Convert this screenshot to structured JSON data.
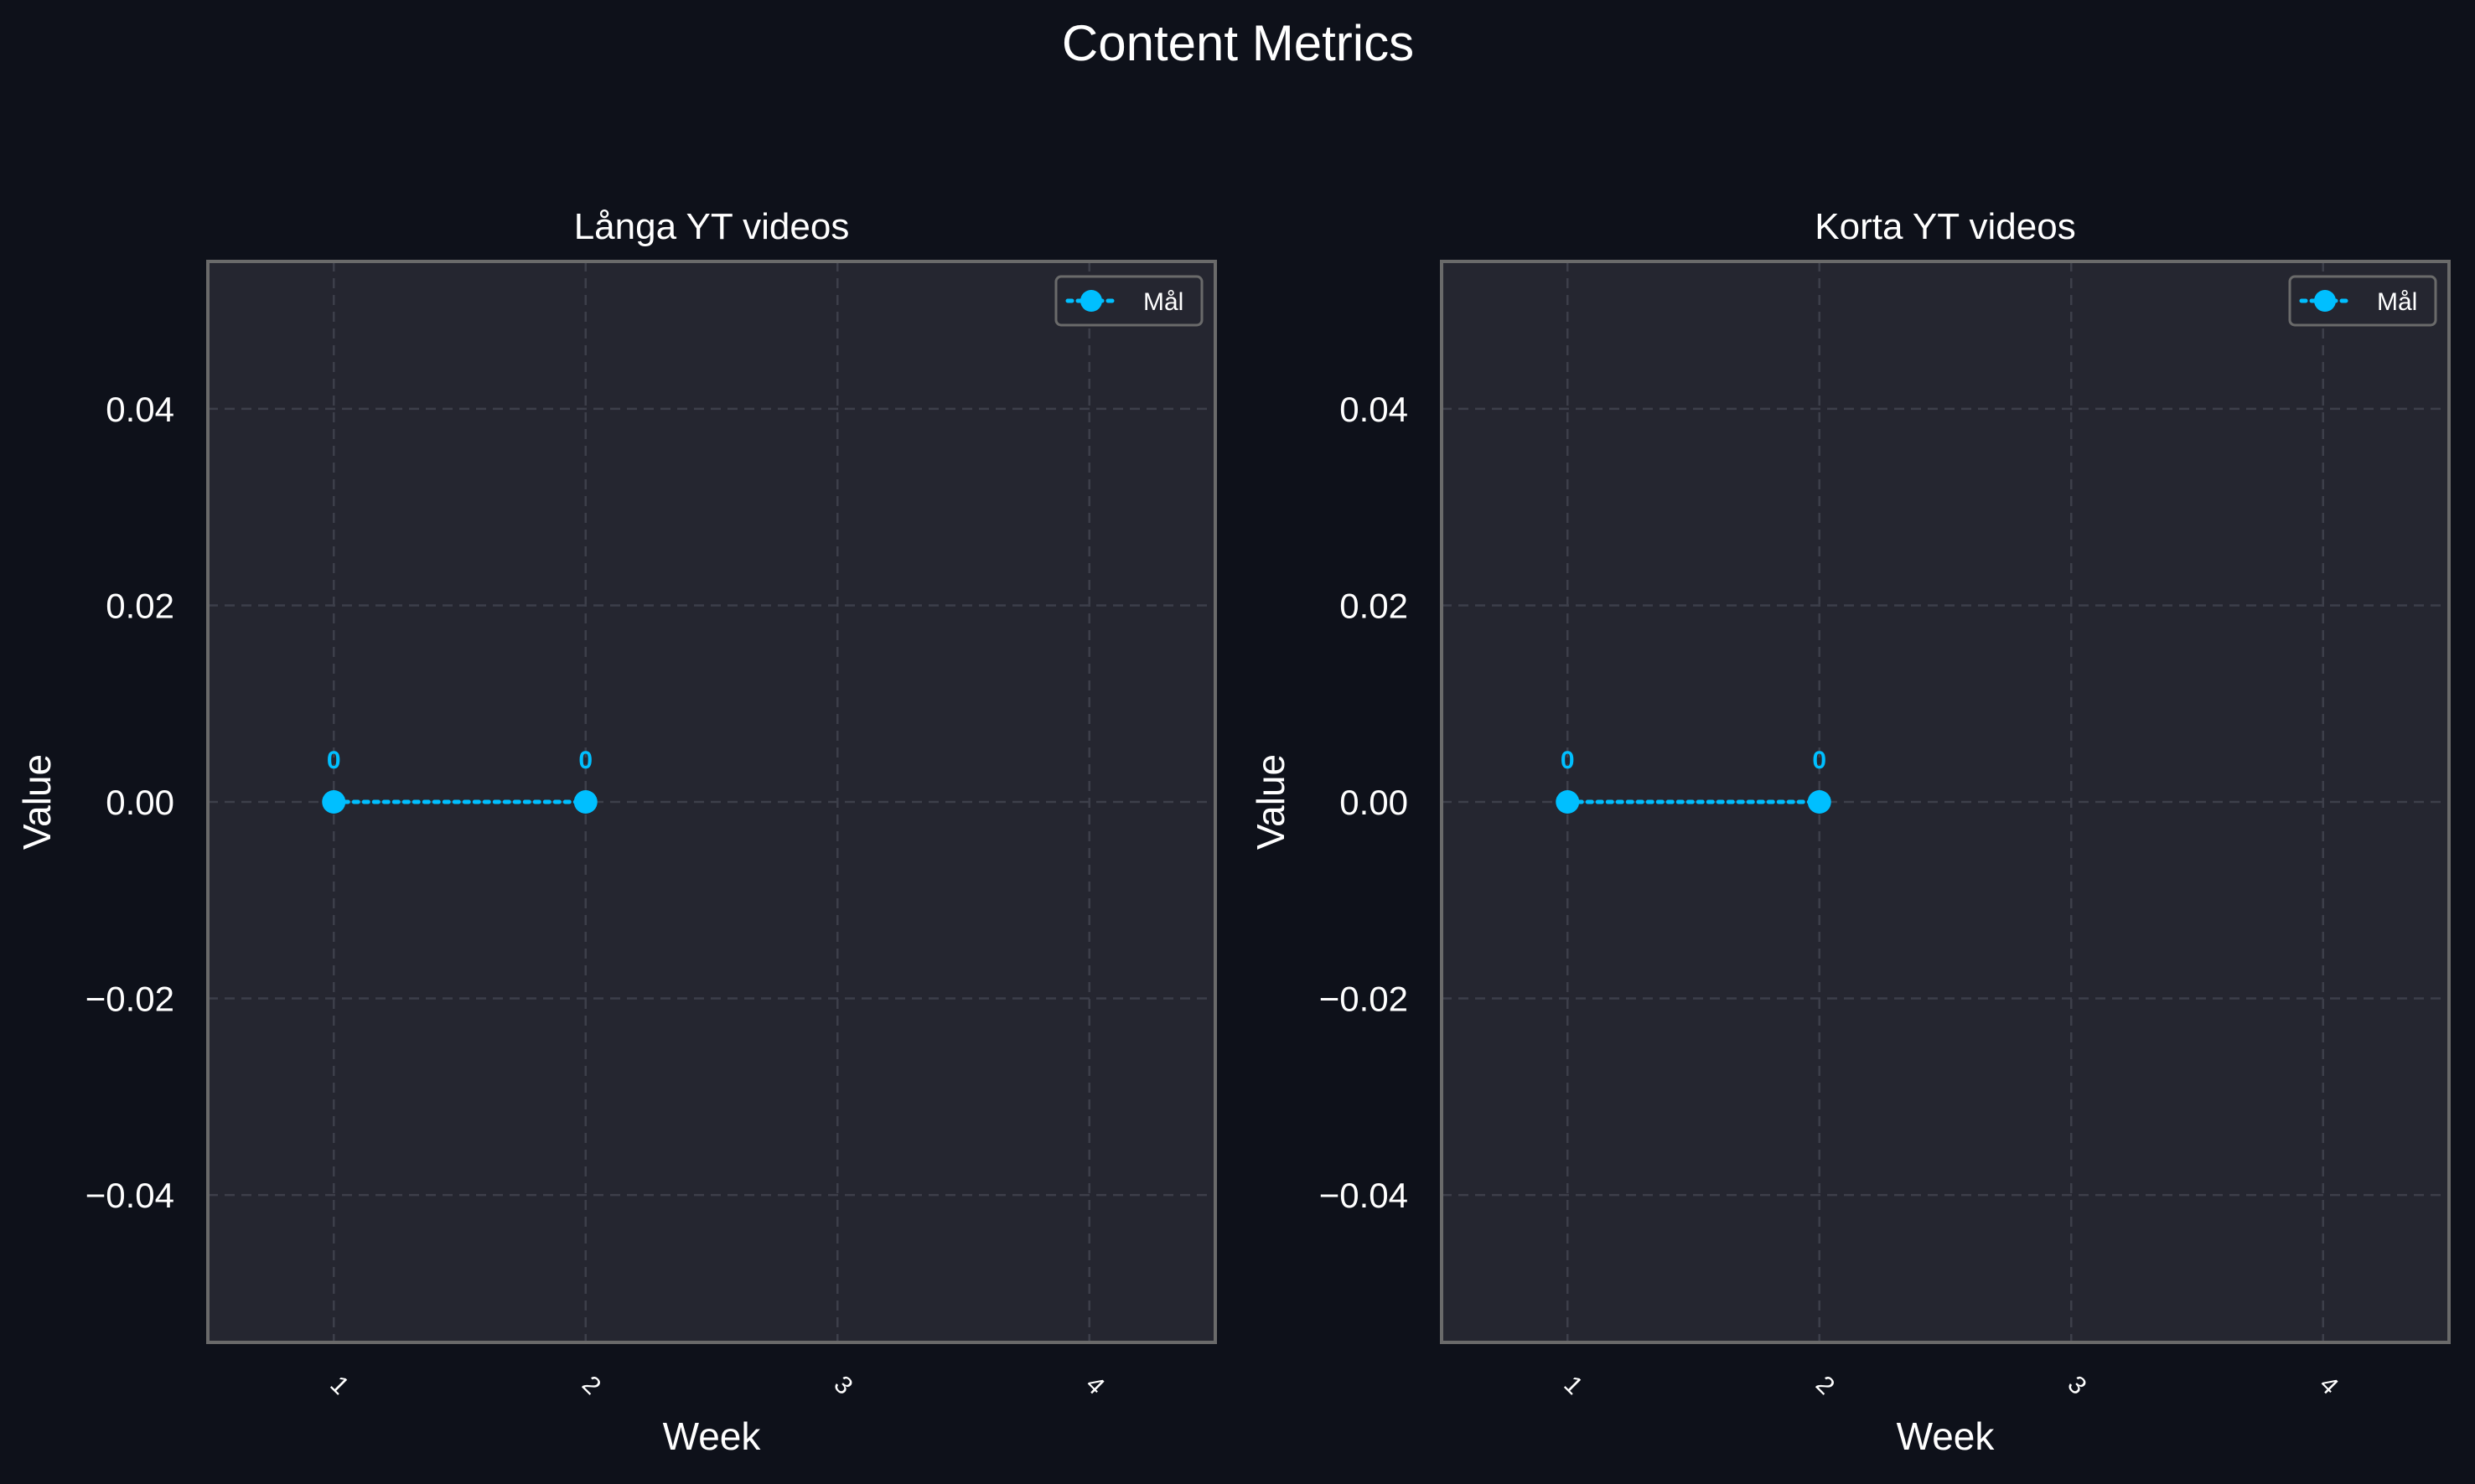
{
  "figure": {
    "title": "Content Metrics"
  },
  "colors": {
    "background": "#0e111a",
    "axes_face": "#252630",
    "axes_edge": "#6a6a6a",
    "grid": "#3d3f4a",
    "text": "#ffffff",
    "series": "#00bfff",
    "legend_face": "#252630",
    "legend_edge": "#6a6a6a"
  },
  "chart_data": [
    {
      "type": "line",
      "title": "Långa YT videos",
      "xlabel": "Week",
      "ylabel": "Value",
      "x_ticks": [
        "1",
        "2",
        "3",
        "4"
      ],
      "xlim": [
        0.5,
        4.5
      ],
      "ylim": [
        -0.055,
        0.055
      ],
      "y_ticks": [
        0.04,
        0.02,
        0.0,
        -0.02,
        -0.04
      ],
      "y_tick_labels": [
        "0.04",
        "0.02",
        "0.00",
        "−0.02",
        "−0.04"
      ],
      "grid": true,
      "legend_position": "top-right",
      "series": [
        {
          "name": "Mål",
          "line_style": "dotted",
          "marker": "circle",
          "x": [
            1,
            2
          ],
          "values": [
            0,
            0
          ],
          "data_labels": [
            "0",
            "0"
          ]
        }
      ]
    },
    {
      "type": "line",
      "title": "Korta YT videos",
      "xlabel": "Week",
      "ylabel": "Value",
      "x_ticks": [
        "1",
        "2",
        "3",
        "4"
      ],
      "xlim": [
        0.5,
        4.5
      ],
      "ylim": [
        -0.055,
        0.055
      ],
      "y_ticks": [
        0.04,
        0.02,
        0.0,
        -0.02,
        -0.04
      ],
      "y_tick_labels": [
        "0.04",
        "0.02",
        "0.00",
        "−0.02",
        "−0.04"
      ],
      "grid": true,
      "legend_position": "top-right",
      "series": [
        {
          "name": "Mål",
          "line_style": "dotted",
          "marker": "circle",
          "x": [
            1,
            2
          ],
          "values": [
            0,
            0
          ],
          "data_labels": [
            "0",
            "0"
          ]
        }
      ]
    }
  ]
}
